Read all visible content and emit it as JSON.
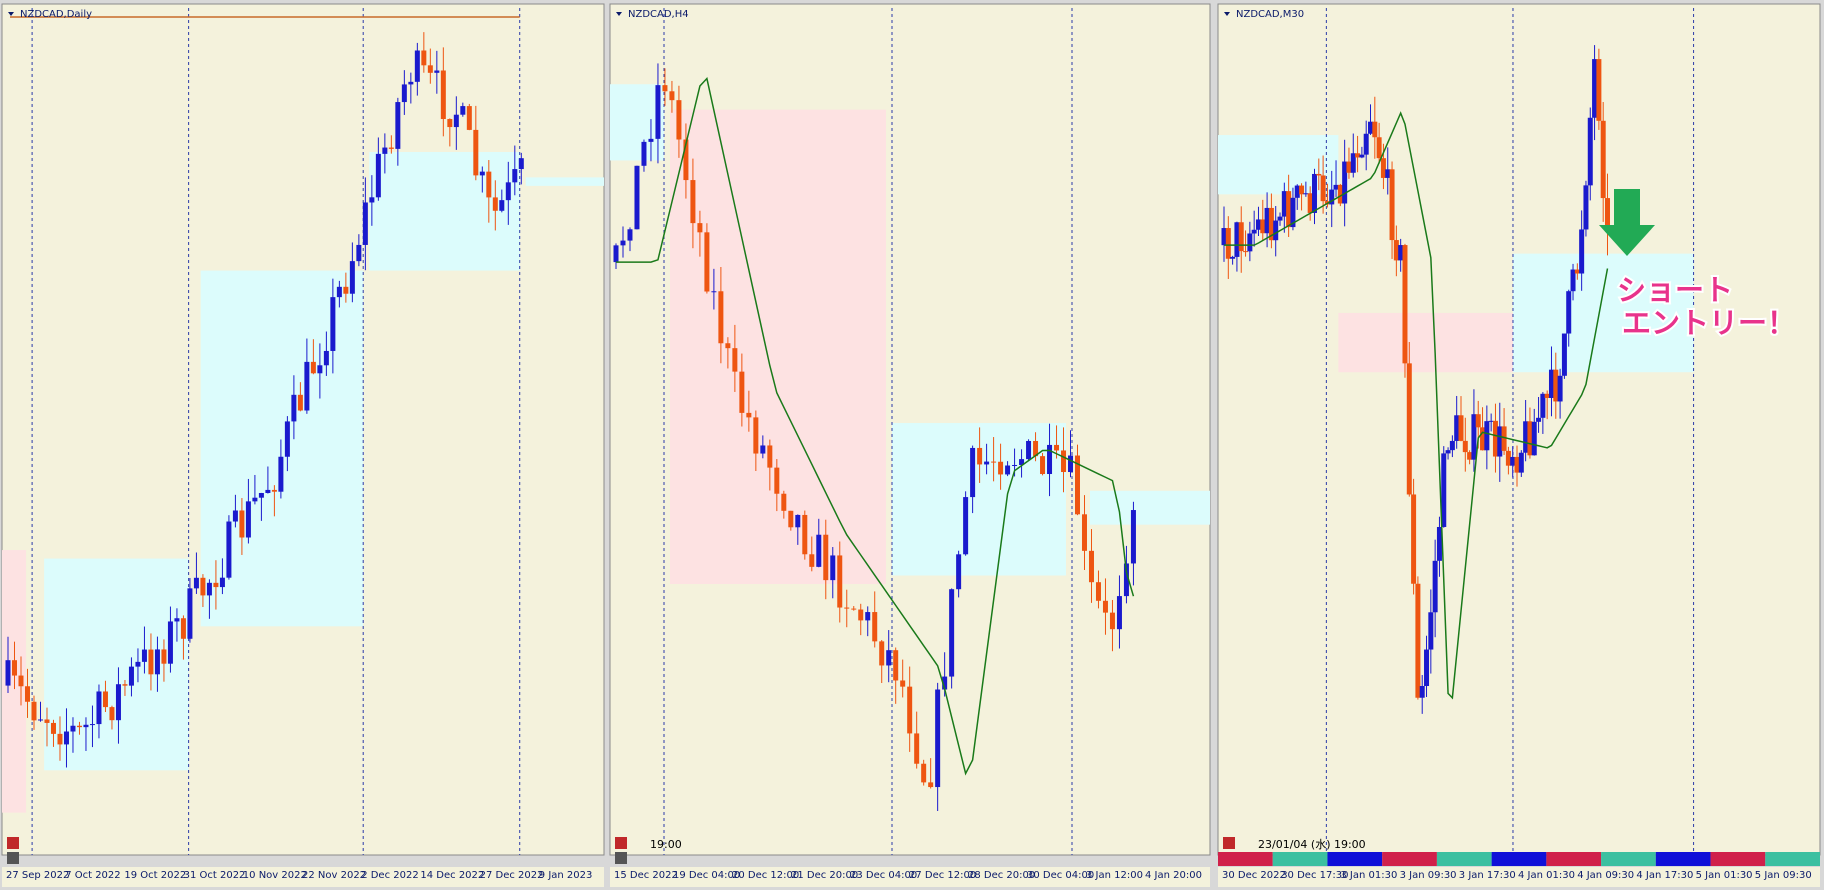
{
  "panels": [
    {
      "title": "NZDCAD,Daily",
      "xlabels": [
        "27 Sep 2022",
        "7 Oct 2022",
        "19 Oct 2022",
        "31 Oct 2022",
        "10 Nov 2022",
        "22 Nov 2022",
        "2 Dec 2022",
        "14 Dec 2022",
        "27 Dec 2022",
        "9 Jan 2023"
      ]
    },
    {
      "title": "NZDCAD,H4",
      "time_label": "19:00",
      "xlabels": [
        "15 Dec 2022",
        "19 Dec 04:00",
        "20 Dec 12:00",
        "21 Dec 20:00",
        "23 Dec 04:00",
        "27 Dec 12:00",
        "28 Dec 20:00",
        "30 Dec 04:00",
        "3 Jan 12:00",
        "4 Jan 20:00"
      ]
    },
    {
      "title": "NZDCAD,M30",
      "time_label": "23/01/04 (水) 19:00",
      "xlabels": [
        "30 Dec 2022",
        "30 Dec 17:30",
        "3 Jan 01:30",
        "3 Jan 09:30",
        "3 Jan 17:30",
        "4 Jan 01:30",
        "4 Jan 09:30",
        "4 Jan 17:30",
        "5 Jan 01:30",
        "5 Jan 09:30"
      ]
    }
  ],
  "annotation": {
    "lines": [
      "ショート",
      "エントリー！"
    ]
  }
}
